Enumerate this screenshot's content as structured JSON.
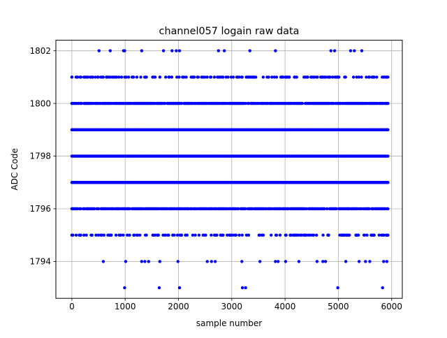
{
  "chart_data": {
    "type": "scatter",
    "title": "channel057 logain raw data",
    "xlabel": "sample number",
    "ylabel": "ADC Code",
    "xlim": [
      -300,
      6200
    ],
    "ylim": [
      1792.6,
      1802.4
    ],
    "x_ticks": [
      0,
      1000,
      2000,
      3000,
      4000,
      5000,
      6000
    ],
    "y_ticks": [
      1794,
      1796,
      1798,
      1800,
      1802
    ],
    "grid": true,
    "marker_color": "#0000ff",
    "x_extent": [
      0,
      5930
    ],
    "dense_levels": [
      {
        "y": 1795,
        "density": 0.35
      },
      {
        "y": 1796,
        "density": 0.85
      },
      {
        "y": 1797,
        "density": 1.0
      },
      {
        "y": 1798,
        "density": 1.0
      },
      {
        "y": 1799,
        "density": 1.0
      },
      {
        "y": 1800,
        "density": 0.85
      },
      {
        "y": 1801,
        "density": 0.4
      }
    ],
    "sparse_points": [
      {
        "x": 510,
        "y": 1802
      },
      {
        "x": 720,
        "y": 1802
      },
      {
        "x": 970,
        "y": 1802
      },
      {
        "x": 990,
        "y": 1802
      },
      {
        "x": 1310,
        "y": 1802
      },
      {
        "x": 1720,
        "y": 1802
      },
      {
        "x": 1880,
        "y": 1802
      },
      {
        "x": 1960,
        "y": 1802
      },
      {
        "x": 2020,
        "y": 1802
      },
      {
        "x": 2750,
        "y": 1802
      },
      {
        "x": 2860,
        "y": 1802
      },
      {
        "x": 3340,
        "y": 1802
      },
      {
        "x": 3820,
        "y": 1802
      },
      {
        "x": 4860,
        "y": 1802
      },
      {
        "x": 4930,
        "y": 1802
      },
      {
        "x": 5230,
        "y": 1802
      },
      {
        "x": 5300,
        "y": 1802
      },
      {
        "x": 5440,
        "y": 1802
      },
      {
        "x": 590,
        "y": 1794
      },
      {
        "x": 1010,
        "y": 1794
      },
      {
        "x": 1310,
        "y": 1794
      },
      {
        "x": 1370,
        "y": 1794
      },
      {
        "x": 1440,
        "y": 1794
      },
      {
        "x": 1650,
        "y": 1794
      },
      {
        "x": 1990,
        "y": 1794
      },
      {
        "x": 2540,
        "y": 1794
      },
      {
        "x": 2620,
        "y": 1794
      },
      {
        "x": 2690,
        "y": 1794
      },
      {
        "x": 3190,
        "y": 1794
      },
      {
        "x": 3530,
        "y": 1794
      },
      {
        "x": 3820,
        "y": 1794
      },
      {
        "x": 3870,
        "y": 1794
      },
      {
        "x": 4010,
        "y": 1794
      },
      {
        "x": 4260,
        "y": 1794
      },
      {
        "x": 4600,
        "y": 1794
      },
      {
        "x": 4710,
        "y": 1794
      },
      {
        "x": 4760,
        "y": 1794
      },
      {
        "x": 5140,
        "y": 1794
      },
      {
        "x": 5390,
        "y": 1794
      },
      {
        "x": 5510,
        "y": 1794
      },
      {
        "x": 5590,
        "y": 1794
      },
      {
        "x": 5850,
        "y": 1794
      },
      {
        "x": 5910,
        "y": 1794
      },
      {
        "x": 990,
        "y": 1793
      },
      {
        "x": 1640,
        "y": 1793
      },
      {
        "x": 2020,
        "y": 1793
      },
      {
        "x": 3200,
        "y": 1793
      },
      {
        "x": 3260,
        "y": 1793
      },
      {
        "x": 4990,
        "y": 1793
      },
      {
        "x": 5830,
        "y": 1793
      }
    ]
  }
}
